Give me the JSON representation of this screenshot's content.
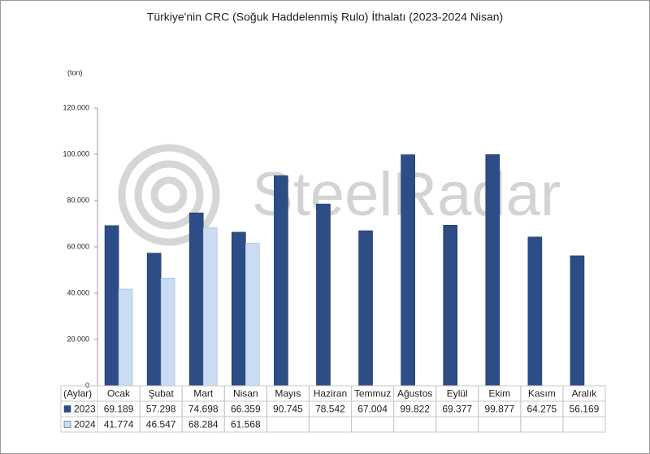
{
  "chart_data": {
    "type": "bar",
    "title": "Türkiye'nin CRC (Soğuk Haddelenmiş Rulo) İthalatı (2023-2024 Nisan)",
    "y_unit": "(ton)",
    "x_label": "(Aylar)",
    "watermark": "SteelRadar",
    "categories": [
      "Ocak",
      "Şubat",
      "Mart",
      "Nisan",
      "Mayıs",
      "Haziran",
      "Temmuz",
      "Ağustos",
      "Eylül",
      "Ekim",
      "Kasım",
      "Aralık"
    ],
    "series": [
      {
        "name": "2023",
        "color": "#2c4d86",
        "values": [
          69189,
          57298,
          74698,
          66359,
          90745,
          78542,
          67004,
          99822,
          69377,
          99877,
          64275,
          56169
        ],
        "value_labels": [
          "69.189",
          "57.298",
          "74.698",
          "66.359",
          "90.745",
          "78.542",
          "67.004",
          "99.822",
          "69.377",
          "99.877",
          "64.275",
          "56.169"
        ]
      },
      {
        "name": "2024",
        "color": "#c9dcf3",
        "values": [
          41774,
          46547,
          68284,
          61568,
          null,
          null,
          null,
          null,
          null,
          null,
          null,
          null
        ],
        "value_labels": [
          "41.774",
          "46.547",
          "68.284",
          "61.568",
          null,
          null,
          null,
          null,
          null,
          null,
          null,
          null
        ]
      }
    ],
    "ylim": [
      0,
      120000
    ],
    "yticks": [
      0,
      {
        "value": 20000,
        "label": "20.000"
      },
      {
        "value": 40000,
        "label": "40.000"
      },
      {
        "value": 60000,
        "label": "60.000"
      },
      {
        "value": 80000,
        "label": "80.000"
      },
      {
        "value": 100000,
        "label": "100.000"
      },
      {
        "value": 120000,
        "label": "120.000"
      }
    ],
    "grid": false
  }
}
